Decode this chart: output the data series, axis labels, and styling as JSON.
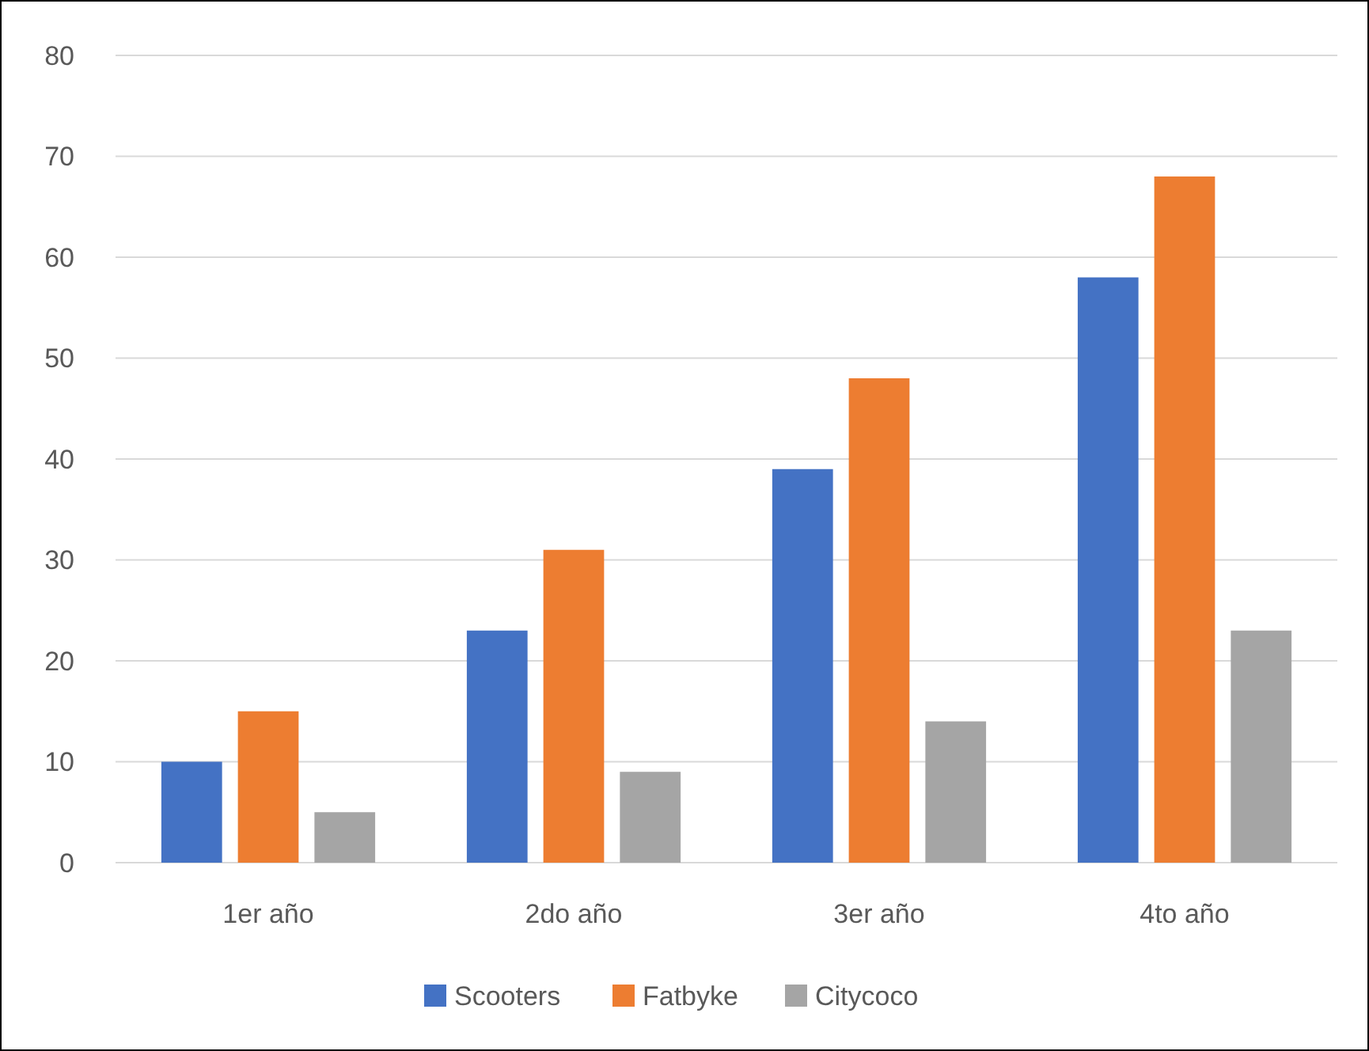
{
  "chart_data": {
    "type": "bar",
    "categories": [
      "1er año",
      "2do año",
      "3er año",
      "4to año"
    ],
    "series": [
      {
        "name": "Scooters",
        "color": "#4472c4",
        "values": [
          10,
          23,
          39,
          58
        ]
      },
      {
        "name": "Fatbyke",
        "color": "#ed7d31",
        "values": [
          15,
          31,
          48,
          68
        ]
      },
      {
        "name": "Citycoco",
        "color": "#a5a5a5",
        "values": [
          5,
          9,
          14,
          23
        ]
      }
    ],
    "ylim": [
      0,
      80
    ],
    "yticks": [
      0,
      10,
      20,
      30,
      40,
      50,
      60,
      70,
      80
    ],
    "grid": "y",
    "legend": "bottom"
  }
}
